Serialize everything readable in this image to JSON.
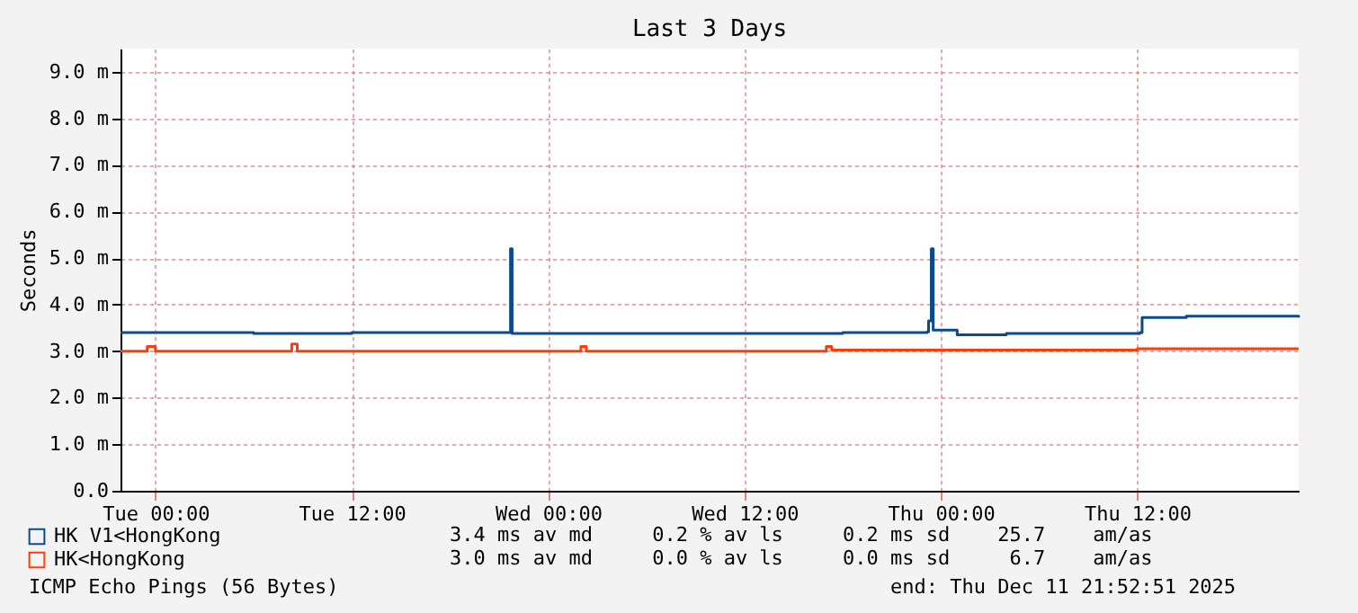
{
  "chart_data": {
    "type": "step",
    "title": "Last 3 Days",
    "ylabel": "Seconds",
    "xlim": [
      "2025-12-08T21:52",
      "2025-12-11T21:52"
    ],
    "xticks": [
      {
        "value": "2025-12-09T00:00",
        "label": "Tue 00:00"
      },
      {
        "value": "2025-12-09T12:00",
        "label": "Tue 12:00"
      },
      {
        "value": "2025-12-10T00:00",
        "label": "Wed 00:00"
      },
      {
        "value": "2025-12-10T12:00",
        "label": "Wed 12:00"
      },
      {
        "value": "2025-12-11T00:00",
        "label": "Thu 00:00"
      },
      {
        "value": "2025-12-11T12:00",
        "label": "Thu 12:00"
      }
    ],
    "ylim": [
      0,
      9.5
    ],
    "yticks": [
      {
        "value": 0,
        "label": "0.0"
      },
      {
        "value": 1,
        "label": "1.0 m"
      },
      {
        "value": 2,
        "label": "2.0 m"
      },
      {
        "value": 3,
        "label": "3.0 m"
      },
      {
        "value": 4,
        "label": "4.0 m"
      },
      {
        "value": 5,
        "label": "5.0 m"
      },
      {
        "value": 6,
        "label": "6.0 m"
      },
      {
        "value": 7,
        "label": "7.0 m"
      },
      {
        "value": 8,
        "label": "8.0 m"
      },
      {
        "value": 9,
        "label": "9.0 m"
      }
    ],
    "grid": true,
    "legend": "bottom",
    "line_style": "solid",
    "series": [
      {
        "name": "HK V1<HongKong",
        "color": "#0b4a8c",
        "x": [
          "2025-12-08T21:52",
          "2025-12-09T06:00",
          "2025-12-09T12:00",
          "2025-12-09T21:36",
          "2025-12-09T21:42",
          "2025-12-09T21:48",
          "2025-12-10T06:00",
          "2025-12-10T12:00",
          "2025-12-10T18:00",
          "2025-12-10T23:10",
          "2025-12-10T23:15",
          "2025-12-10T23:25",
          "2025-12-10T23:32",
          "2025-12-11T01:00",
          "2025-12-11T04:00",
          "2025-12-11T12:10",
          "2025-12-11T12:18",
          "2025-12-11T15:00",
          "2025-12-11T21:52"
        ],
        "values": [
          3.4,
          3.38,
          3.4,
          3.4,
          5.2,
          3.38,
          3.38,
          3.38,
          3.4,
          3.42,
          3.65,
          5.2,
          3.45,
          3.35,
          3.38,
          3.4,
          3.72,
          3.75,
          3.72
        ]
      },
      {
        "name": "HK<HongKong",
        "color": "#ff3d0a",
        "x": [
          "2025-12-08T21:52",
          "2025-12-08T23:30",
          "2025-12-09T00:00",
          "2025-12-09T08:20",
          "2025-12-09T08:40",
          "2025-12-09T12:00",
          "2025-12-10T02:00",
          "2025-12-10T02:20",
          "2025-12-10T12:00",
          "2025-12-10T17:00",
          "2025-12-10T17:20",
          "2025-12-11T12:00",
          "2025-12-11T21:52"
        ],
        "values": [
          3.0,
          3.1,
          3.0,
          3.15,
          3.0,
          3.0,
          3.1,
          3.0,
          3.0,
          3.1,
          3.02,
          3.05,
          3.05
        ]
      }
    ],
    "annotations": [
      "3.4 ms av md     0.2 % av ls     0.2 ms sd    25.7    am/as",
      "3.0 ms av md     0.0 % av ls     0.0 ms sd     6.7    am/as",
      "ICMP Echo Pings (56 Bytes)",
      "end: Thu Dec 11 21:52:51 2025"
    ]
  }
}
